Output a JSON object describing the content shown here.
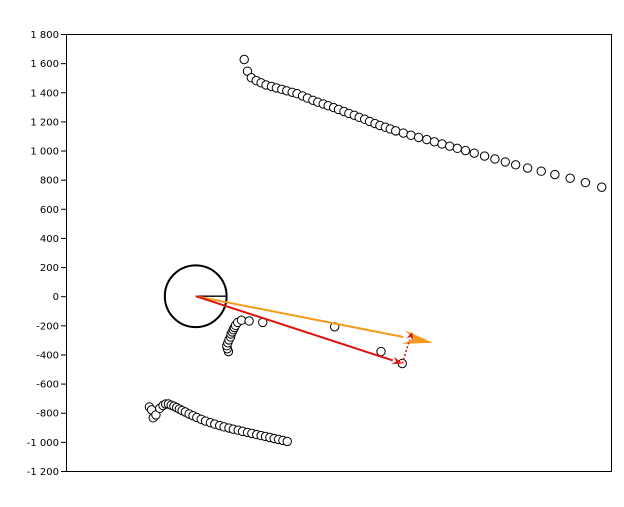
{
  "chart_data": {
    "type": "scatter",
    "title": "",
    "xlabel": "",
    "ylabel": "",
    "xlim": [
      0,
      1
    ],
    "ylim": [
      -1200,
      1800
    ],
    "grid": false,
    "y_ticks": [
      1800,
      1600,
      1400,
      1200,
      1000,
      800,
      600,
      400,
      200,
      0,
      -200,
      -400,
      -600,
      -800,
      -1000,
      -1200
    ],
    "y_tick_labels": [
      "1 800",
      "1 600",
      "1 400",
      "1 200",
      "1 000",
      "800",
      "600",
      "400",
      "200",
      "0",
      "-200",
      "-400",
      "-600",
      "-800",
      "-1 000",
      "-1 200"
    ],
    "colors": {
      "points": "#000000",
      "red_arrow": "#e0140f",
      "orange_arrow": "#f59a1a",
      "circle": "#000000"
    },
    "series": [
      {
        "marker": "open-circle",
        "x": [
          0.327,
          0.333,
          0.34,
          0.349,
          0.358,
          0.367,
          0.377,
          0.386,
          0.396,
          0.405,
          0.415,
          0.424,
          0.434,
          0.443,
          0.453,
          0.462,
          0.472,
          0.481,
          0.491,
          0.5,
          0.51,
          0.519,
          0.529,
          0.538,
          0.548,
          0.557,
          0.567,
          0.576,
          0.586,
          0.595,
          0.605,
          0.619,
          0.633,
          0.647,
          0.662,
          0.676,
          0.69,
          0.704,
          0.718,
          0.733,
          0.749,
          0.768,
          0.787,
          0.806,
          0.825,
          0.847,
          0.872,
          0.897,
          0.925,
          0.953,
          0.983
        ],
        "y": [
          1625,
          1545,
          1500,
          1480,
          1465,
          1450,
          1440,
          1430,
          1420,
          1410,
          1400,
          1390,
          1375,
          1360,
          1345,
          1332,
          1320,
          1308,
          1295,
          1282,
          1268,
          1255,
          1242,
          1228,
          1215,
          1200,
          1185,
          1172,
          1160,
          1148,
          1135,
          1120,
          1105,
          1090,
          1075,
          1060,
          1045,
          1030,
          1015,
          1000,
          982,
          962,
          942,
          922,
          902,
          880,
          858,
          835,
          810,
          780,
          748
        ]
      },
      {
        "marker": "open-circle",
        "x": [
          0.298,
          0.296,
          0.295,
          0.297,
          0.299,
          0.302,
          0.303,
          0.305,
          0.307,
          0.309,
          0.311,
          0.315,
          0.322,
          0.336,
          0.361,
          0.493,
          0.578
        ],
        "y": [
          -380,
          -360,
          -340,
          -320,
          -300,
          -280,
          -260,
          -245,
          -230,
          -215,
          -200,
          -180,
          -165,
          -170,
          -180,
          -210,
          -380
        ]
      },
      {
        "marker": "open-circle",
        "x": [
          0.617
        ],
        "y": [
          -462
        ]
      },
      {
        "marker": "open-circle",
        "x": [
          0.153,
          0.157,
          0.16,
          0.165,
          0.172,
          0.178,
          0.183,
          0.188,
          0.193,
          0.198,
          0.203,
          0.208,
          0.213,
          0.219,
          0.226,
          0.233,
          0.24,
          0.248,
          0.256,
          0.265,
          0.273,
          0.282,
          0.29,
          0.299,
          0.307,
          0.316,
          0.324,
          0.333,
          0.341,
          0.35,
          0.358,
          0.366,
          0.374,
          0.382,
          0.39,
          0.398,
          0.406
        ],
        "y": [
          -760,
          -780,
          -835,
          -815,
          -770,
          -750,
          -740,
          -740,
          -748,
          -755,
          -765,
          -775,
          -785,
          -795,
          -808,
          -820,
          -832,
          -845,
          -857,
          -868,
          -878,
          -888,
          -897,
          -905,
          -913,
          -920,
          -928,
          -935,
          -942,
          -950,
          -957,
          -963,
          -970,
          -977,
          -983,
          -990,
          -997
        ]
      }
    ],
    "annotations": {
      "circle": {
        "center": [
          0.238,
          0
        ],
        "radius_y": 212
      },
      "red_arrow": {
        "from": [
          0.238,
          0
        ],
        "to": [
          0.617,
          -462
        ]
      },
      "orange_arrow": {
        "from": [
          0.238,
          0
        ],
        "to": [
          0.673,
          -320
        ]
      },
      "red_dotted_arrow": {
        "from": [
          0.617,
          -462
        ],
        "to": [
          0.635,
          -245
        ]
      }
    }
  }
}
